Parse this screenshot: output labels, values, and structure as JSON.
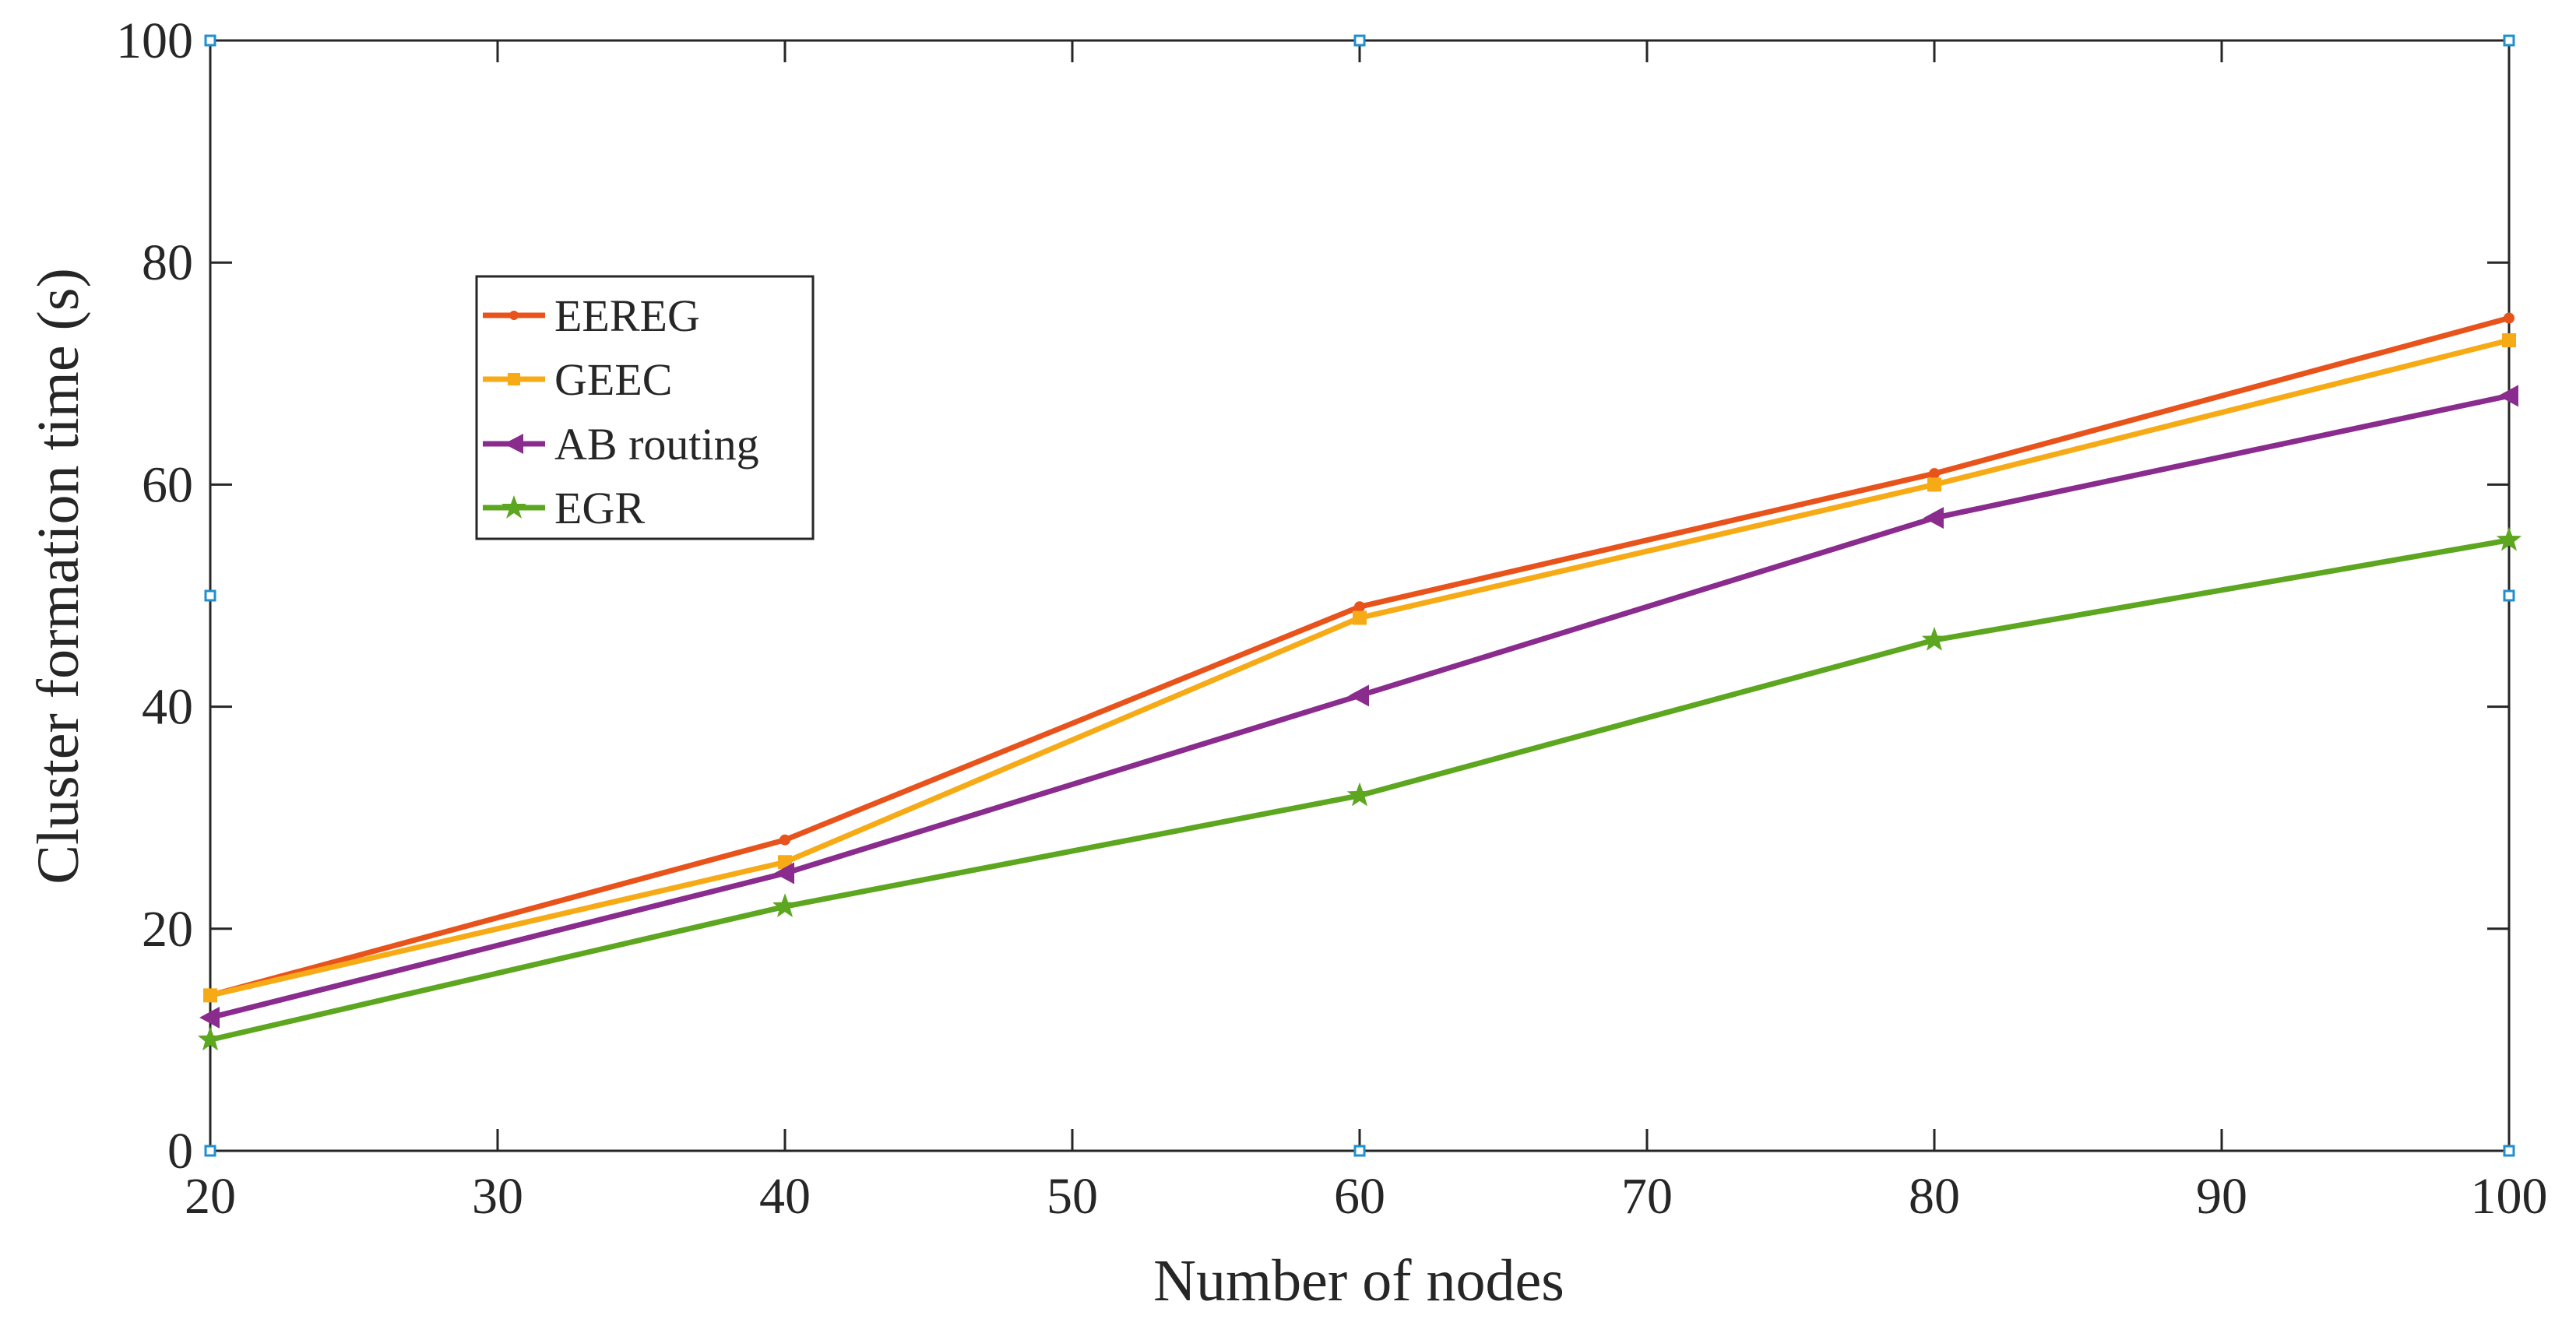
{
  "chart_data": {
    "type": "line",
    "title": "",
    "xlabel": "Number of nodes",
    "ylabel": "Cluster formation time (s)",
    "xlim": [
      20,
      100
    ],
    "ylim": [
      0,
      100
    ],
    "x_ticks": [
      "20",
      "30",
      "40",
      "50",
      "60",
      "70",
      "80",
      "90",
      "100"
    ],
    "y_ticks": [
      "0",
      "20",
      "40",
      "60",
      "80",
      "100"
    ],
    "x_tick_values": [
      20,
      30,
      40,
      50,
      60,
      70,
      80,
      90,
      100
    ],
    "y_tick_values": [
      0,
      20,
      40,
      60,
      80,
      100
    ],
    "x": [
      20,
      40,
      60,
      80,
      100
    ],
    "grid": false,
    "legend_position": "upper-left",
    "series": [
      {
        "name": "EEREG",
        "values": [
          14,
          28,
          49,
          61,
          75
        ],
        "color": "#e8521b",
        "marker": "dot"
      },
      {
        "name": "GEEC",
        "values": [
          14,
          26,
          48,
          60,
          73
        ],
        "color": "#f6ab16",
        "marker": "square"
      },
      {
        "name": "AB routing",
        "values": [
          12,
          25,
          41,
          57,
          68
        ],
        "color": "#8a2b8e",
        "marker": "triangle-left"
      },
      {
        "name": "EGR",
        "values": [
          10,
          22,
          32,
          46,
          55
        ],
        "color": "#5da61f",
        "marker": "star"
      }
    ]
  }
}
